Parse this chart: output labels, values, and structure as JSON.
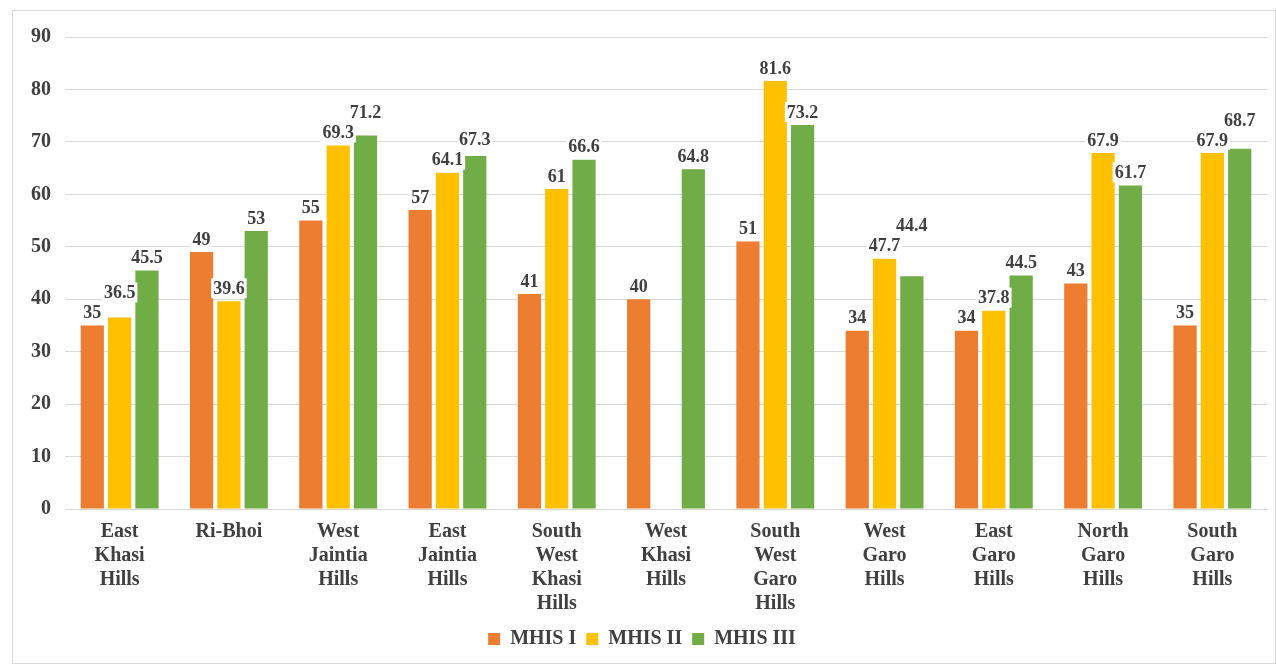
{
  "chart_data": {
    "type": "bar",
    "categories": [
      "East Khasi Hills",
      "Ri-Bhoi",
      "West Jaintia Hills",
      "East Jaintia Hills",
      "South West Khasi Hills",
      "West Khasi Hills",
      "South West Garo Hills",
      "West Garo Hills",
      "East Garo Hills",
      "North Garo Hills",
      "South Garo Hills"
    ],
    "series": [
      {
        "name": "MHIS I",
        "color": "#ed7d31",
        "values": [
          35,
          49,
          55,
          57,
          41,
          40,
          51,
          34,
          34,
          43,
          35
        ]
      },
      {
        "name": "MHIS II",
        "color": "#ffc000",
        "values": [
          36.5,
          39.6,
          69.3,
          64.1,
          61,
          null,
          81.6,
          47.7,
          37.8,
          67.9,
          67.9
        ]
      },
      {
        "name": "MHIS III",
        "color": "#70ad47",
        "values": [
          45.5,
          53,
          71.2,
          67.3,
          66.6,
          64.8,
          73.2,
          44.4,
          44.5,
          61.7,
          68.7
        ]
      }
    ],
    "ylim": [
      0,
      90
    ],
    "yticks": [
      0,
      10,
      20,
      30,
      40,
      50,
      60,
      70,
      80,
      90
    ],
    "grid": "y",
    "legend": "bottom",
    "data_labels": true
  }
}
